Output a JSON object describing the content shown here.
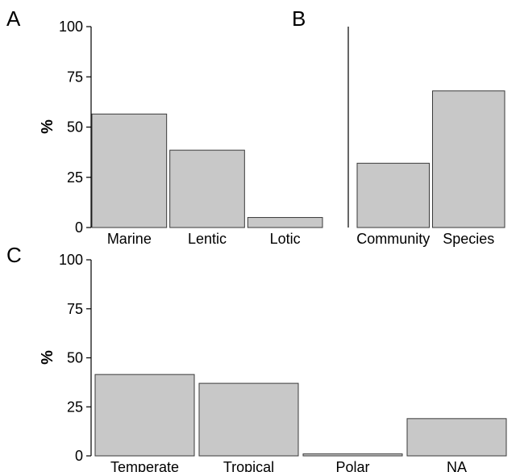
{
  "chart_data": [
    {
      "panel": "A",
      "type": "bar",
      "categories": [
        "Marine",
        "Lentic",
        "Lotic"
      ],
      "values": [
        56.5,
        38.5,
        5
      ],
      "ylabel": "%",
      "yticks": [
        0,
        25,
        50,
        75,
        100
      ],
      "ylim": [
        0,
        100
      ],
      "bar_color": "#c8c8c8"
    },
    {
      "panel": "B",
      "type": "bar",
      "categories": [
        "Community",
        "Species"
      ],
      "values": [
        32,
        68
      ],
      "ylabel": "",
      "ylim": [
        0,
        100
      ],
      "bar_color": "#c8c8c8"
    },
    {
      "panel": "C",
      "type": "bar",
      "categories": [
        "Temperate",
        "Tropical",
        "Polar",
        "NA"
      ],
      "values": [
        41.5,
        37,
        1,
        19
      ],
      "ylabel": "%",
      "yticks": [
        0,
        25,
        50,
        75,
        100
      ],
      "ylim": [
        0,
        100
      ],
      "bar_color": "#c8c8c8"
    }
  ]
}
